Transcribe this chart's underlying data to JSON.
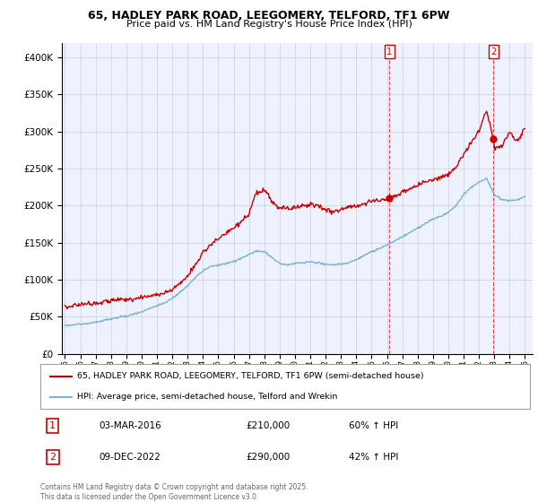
{
  "title1": "65, HADLEY PARK ROAD, LEEGOMERY, TELFORD, TF1 6PW",
  "title2": "Price paid vs. HM Land Registry's House Price Index (HPI)",
  "red_line_label": "65, HADLEY PARK ROAD, LEEGOMERY, TELFORD, TF1 6PW (semi-detached house)",
  "blue_line_label": "HPI: Average price, semi-detached house, Telford and Wrekin",
  "annotation1_date": "03-MAR-2016",
  "annotation1_price": "£210,000",
  "annotation1_hpi": "60% ↑ HPI",
  "annotation2_date": "09-DEC-2022",
  "annotation2_price": "£290,000",
  "annotation2_hpi": "42% ↑ HPI",
  "footer": "Contains HM Land Registry data © Crown copyright and database right 2025.\nThis data is licensed under the Open Government Licence v3.0.",
  "vline1_x": 2016.17,
  "vline2_x": 2022.94,
  "ylim": [
    0,
    420000
  ],
  "xlim_start": 1994.8,
  "xlim_end": 2025.5,
  "plot_bg": "#eef2ff",
  "grid_color": "#ccccdd",
  "red_color": "#cc0000",
  "blue_color": "#7ab0d4",
  "red_anchor_x": [
    1995.0,
    1995.5,
    1996.0,
    1996.5,
    1997.0,
    1997.5,
    1998.0,
    1998.5,
    1999.0,
    1999.5,
    2000.0,
    2000.5,
    2001.0,
    2001.5,
    2002.0,
    2002.5,
    2003.0,
    2003.5,
    2004.0,
    2004.5,
    2005.0,
    2005.5,
    2006.0,
    2006.5,
    2007.0,
    2007.5,
    2008.0,
    2008.25,
    2008.5,
    2008.75,
    2009.0,
    2009.5,
    2010.0,
    2010.5,
    2011.0,
    2011.5,
    2012.0,
    2012.5,
    2013.0,
    2013.5,
    2014.0,
    2014.5,
    2015.0,
    2015.5,
    2016.0,
    2016.17,
    2016.5,
    2017.0,
    2017.5,
    2018.0,
    2018.5,
    2019.0,
    2019.5,
    2020.0,
    2020.5,
    2021.0,
    2021.5,
    2022.0,
    2022.5,
    2022.94,
    2023.0,
    2023.5,
    2024.0,
    2024.5,
    2025.0
  ],
  "red_anchor_y": [
    63000,
    65000,
    67000,
    68000,
    69000,
    70000,
    72000,
    73000,
    73000,
    75000,
    76000,
    78000,
    80000,
    82000,
    87000,
    95000,
    105000,
    120000,
    137000,
    148000,
    155000,
    162000,
    170000,
    178000,
    188000,
    218000,
    220000,
    215000,
    205000,
    200000,
    197000,
    196000,
    198000,
    200000,
    202000,
    200000,
    195000,
    192000,
    195000,
    198000,
    200000,
    203000,
    206000,
    207000,
    208000,
    210000,
    212000,
    218000,
    222000,
    228000,
    233000,
    235000,
    238000,
    242000,
    252000,
    270000,
    285000,
    300000,
    330000,
    290000,
    278000,
    280000,
    300000,
    285000,
    305000
  ],
  "blue_anchor_x": [
    1995.0,
    1995.5,
    1996.0,
    1996.5,
    1997.0,
    1997.5,
    1998.0,
    1998.5,
    1999.0,
    1999.5,
    2000.0,
    2000.5,
    2001.0,
    2001.5,
    2002.0,
    2002.5,
    2003.0,
    2003.5,
    2004.0,
    2004.5,
    2005.0,
    2005.5,
    2006.0,
    2006.5,
    2007.0,
    2007.5,
    2008.0,
    2008.5,
    2009.0,
    2009.5,
    2010.0,
    2010.5,
    2011.0,
    2011.5,
    2012.0,
    2012.5,
    2013.0,
    2013.5,
    2014.0,
    2014.5,
    2015.0,
    2015.5,
    2016.0,
    2016.5,
    2017.0,
    2017.5,
    2018.0,
    2018.5,
    2019.0,
    2019.5,
    2020.0,
    2020.5,
    2021.0,
    2021.5,
    2022.0,
    2022.5,
    2023.0,
    2023.5,
    2024.0,
    2024.5,
    2025.0
  ],
  "blue_anchor_y": [
    38000,
    39000,
    40000,
    41000,
    43000,
    45000,
    47000,
    49000,
    51000,
    54000,
    57000,
    61000,
    65000,
    69000,
    75000,
    83000,
    92000,
    103000,
    112000,
    118000,
    120000,
    122000,
    125000,
    129000,
    134000,
    139000,
    138000,
    130000,
    122000,
    120000,
    122000,
    123000,
    124000,
    123000,
    121000,
    120000,
    121000,
    123000,
    127000,
    133000,
    138000,
    142000,
    147000,
    152000,
    158000,
    164000,
    170000,
    176000,
    182000,
    186000,
    191000,
    200000,
    215000,
    225000,
    232000,
    237000,
    215000,
    208000,
    207000,
    208000,
    213000
  ]
}
